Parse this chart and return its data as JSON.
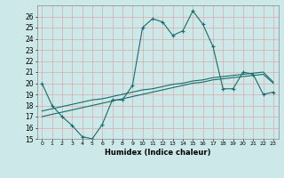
{
  "xlabel": "Humidex (Indice chaleur)",
  "x_ticks": [
    0,
    1,
    2,
    3,
    4,
    5,
    6,
    7,
    8,
    9,
    10,
    11,
    12,
    13,
    14,
    15,
    16,
    17,
    18,
    19,
    20,
    21,
    22,
    23
  ],
  "ylim": [
    15,
    27
  ],
  "y_ticks": [
    15,
    16,
    17,
    18,
    19,
    20,
    21,
    22,
    23,
    24,
    25,
    26
  ],
  "bg_color": "#cce8e8",
  "grid_color": "#aacccc",
  "line_color": "#1a6b6b",
  "series1_x": [
    0,
    1,
    2,
    3,
    4,
    5,
    6,
    7,
    8,
    9,
    10,
    11,
    12,
    13,
    14,
    15,
    16,
    17,
    18,
    19,
    20,
    21,
    22,
    23
  ],
  "series1_y": [
    20,
    18,
    17,
    16.2,
    15.2,
    15.0,
    16.3,
    18.5,
    18.5,
    19.8,
    25.0,
    25.8,
    25.5,
    24.3,
    24.7,
    26.5,
    25.3,
    23.3,
    19.5,
    19.5,
    21.0,
    20.8,
    19.0,
    19.2
  ],
  "series2_x": [
    0,
    1,
    2,
    3,
    4,
    5,
    6,
    7,
    8,
    9,
    10,
    11,
    12,
    13,
    14,
    15,
    16,
    17,
    18,
    19,
    20,
    21,
    22,
    23
  ],
  "series2_y": [
    17.0,
    17.2,
    17.4,
    17.6,
    17.8,
    18.0,
    18.2,
    18.4,
    18.6,
    18.8,
    19.0,
    19.2,
    19.4,
    19.6,
    19.8,
    20.0,
    20.1,
    20.3,
    20.4,
    20.5,
    20.6,
    20.7,
    20.8,
    20.0
  ],
  "series3_x": [
    0,
    1,
    2,
    3,
    4,
    5,
    6,
    7,
    8,
    9,
    10,
    11,
    12,
    13,
    14,
    15,
    16,
    17,
    18,
    19,
    20,
    21,
    22,
    23
  ],
  "series3_y": [
    17.5,
    17.7,
    17.9,
    18.1,
    18.3,
    18.5,
    18.6,
    18.8,
    19.0,
    19.2,
    19.4,
    19.5,
    19.7,
    19.9,
    20.0,
    20.2,
    20.3,
    20.5,
    20.6,
    20.7,
    20.8,
    20.9,
    21.0,
    20.1
  ]
}
